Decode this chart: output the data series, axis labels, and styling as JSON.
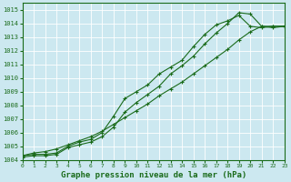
{
  "title": "Graphe pression niveau de la mer (hPa)",
  "bg_color": "#cce8f0",
  "grid_color": "#b0d8e8",
  "line_color": "#1a6b1a",
  "xlim": [
    0,
    23
  ],
  "ylim": [
    1004,
    1015.5
  ],
  "xticks": [
    0,
    1,
    2,
    3,
    4,
    5,
    6,
    7,
    8,
    9,
    10,
    11,
    12,
    13,
    14,
    15,
    16,
    17,
    18,
    19,
    20,
    21,
    22,
    23
  ],
  "yticks": [
    1004,
    1005,
    1006,
    1007,
    1008,
    1009,
    1010,
    1011,
    1012,
    1013,
    1014,
    1015
  ],
  "series": [
    [
      1004.3,
      1004.4,
      1004.4,
      1004.5,
      1005.0,
      1005.3,
      1005.5,
      1006.0,
      1007.2,
      1008.5,
      1009.0,
      1009.5,
      1010.3,
      1010.8,
      1011.3,
      1012.3,
      1013.2,
      1013.9,
      1014.2,
      1014.6,
      1013.8,
      1013.7,
      1013.8,
      1013.8
    ],
    [
      1004.2,
      1004.3,
      1004.3,
      1004.4,
      1004.9,
      1005.1,
      1005.3,
      1005.7,
      1006.4,
      1007.5,
      1008.2,
      1008.8,
      1009.4,
      1010.3,
      1010.9,
      1011.6,
      1012.5,
      1013.3,
      1014.0,
      1014.8,
      1014.7,
      1013.8,
      1013.7,
      1013.8
    ],
    [
      1004.3,
      1004.5,
      1004.6,
      1004.8,
      1005.1,
      1005.4,
      1005.7,
      1006.1,
      1006.6,
      1007.1,
      1007.6,
      1008.1,
      1008.7,
      1009.2,
      1009.7,
      1010.3,
      1010.9,
      1011.5,
      1012.1,
      1012.8,
      1013.4,
      1013.8,
      1013.8,
      1013.8
    ]
  ]
}
